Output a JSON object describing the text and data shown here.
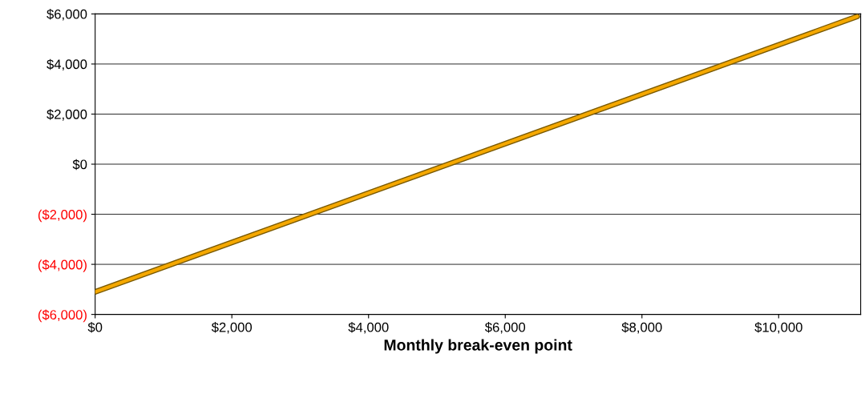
{
  "chart_data": {
    "type": "line",
    "xlabel": "Monthly break-even point",
    "x": [
      0,
      11150
    ],
    "series": [
      {
        "color": "#f5a800",
        "values": [
          -5100,
          5900
        ]
      }
    ],
    "xlim": [
      0,
      11200
    ],
    "xticks": [
      {
        "value": 0,
        "label": "$0"
      },
      {
        "value": 2000,
        "label": "$2,000"
      },
      {
        "value": 4000,
        "label": "$4,000"
      },
      {
        "value": 6000,
        "label": "$6,000"
      },
      {
        "value": 8000,
        "label": "$8,000"
      },
      {
        "value": 10000,
        "label": "$10,000"
      }
    ],
    "ylim": [
      -6000,
      6000
    ],
    "yticks": [
      {
        "value": -6000,
        "label": "($6,000)"
      },
      {
        "value": -4000,
        "label": "($4,000)"
      },
      {
        "value": -2000,
        "label": "($2,000)"
      },
      {
        "value": 0,
        "label": "$0"
      },
      {
        "value": 2000,
        "label": "$2,000"
      },
      {
        "value": 4000,
        "label": "$4,000"
      },
      {
        "value": 6000,
        "label": "$6,000"
      }
    ],
    "grid": "y",
    "marker": "none",
    "line_style": "solid",
    "legend": false
  }
}
